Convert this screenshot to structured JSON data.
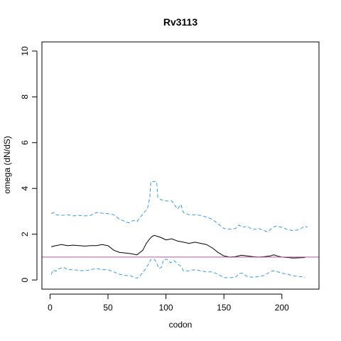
{
  "chart_data": {
    "type": "line",
    "title": "Rv3113",
    "xlabel": "codon",
    "ylabel": "omega (dN/dS)",
    "xlim": [
      -7,
      232
    ],
    "ylim": [
      -0.4,
      10.4
    ],
    "xticks": [
      0,
      50,
      100,
      150,
      200
    ],
    "yticks": [
      0,
      2,
      4,
      6,
      8,
      10
    ],
    "grid": false,
    "reference_line": {
      "y": 1,
      "color": "#c8509b"
    },
    "series": [
      {
        "style": "solid",
        "color": "#000000",
        "points": [
          [
            1,
            1.45
          ],
          [
            5,
            1.5
          ],
          [
            10,
            1.55
          ],
          [
            15,
            1.5
          ],
          [
            20,
            1.52
          ],
          [
            25,
            1.5
          ],
          [
            30,
            1.48
          ],
          [
            35,
            1.5
          ],
          [
            40,
            1.5
          ],
          [
            45,
            1.55
          ],
          [
            50,
            1.5
          ],
          [
            55,
            1.3
          ],
          [
            60,
            1.2
          ],
          [
            65,
            1.18
          ],
          [
            70,
            1.15
          ],
          [
            75,
            1.1
          ],
          [
            80,
            1.3
          ],
          [
            83,
            1.6
          ],
          [
            86,
            1.8
          ],
          [
            88,
            1.9
          ],
          [
            90,
            1.95
          ],
          [
            93,
            1.9
          ],
          [
            96,
            1.85
          ],
          [
            100,
            1.75
          ],
          [
            105,
            1.8
          ],
          [
            110,
            1.7
          ],
          [
            115,
            1.65
          ],
          [
            120,
            1.6
          ],
          [
            125,
            1.65
          ],
          [
            130,
            1.6
          ],
          [
            135,
            1.55
          ],
          [
            140,
            1.4
          ],
          [
            145,
            1.2
          ],
          [
            150,
            1.05
          ],
          [
            155,
            1.0
          ],
          [
            160,
            1.02
          ],
          [
            165,
            1.08
          ],
          [
            170,
            1.05
          ],
          [
            175,
            1.02
          ],
          [
            180,
            1.0
          ],
          [
            185,
            1.02
          ],
          [
            190,
            1.05
          ],
          [
            193,
            1.1
          ],
          [
            196,
            1.05
          ],
          [
            200,
            1.0
          ],
          [
            205,
            0.98
          ],
          [
            210,
            0.96
          ],
          [
            215,
            0.97
          ],
          [
            220,
            0.98
          ]
        ]
      },
      {
        "style": "dashed",
        "color": "#3a9de0",
        "points": [
          [
            1,
            2.9
          ],
          [
            3,
            2.95
          ],
          [
            5,
            2.85
          ],
          [
            10,
            2.82
          ],
          [
            15,
            2.85
          ],
          [
            20,
            2.8
          ],
          [
            25,
            2.82
          ],
          [
            30,
            2.8
          ],
          [
            35,
            2.82
          ],
          [
            40,
            2.95
          ],
          [
            45,
            2.92
          ],
          [
            50,
            2.9
          ],
          [
            55,
            2.85
          ],
          [
            60,
            2.65
          ],
          [
            65,
            2.55
          ],
          [
            68,
            2.5
          ],
          [
            72,
            2.6
          ],
          [
            75,
            2.55
          ],
          [
            78,
            2.75
          ],
          [
            82,
            3.0
          ],
          [
            84,
            3.1
          ],
          [
            86,
            3.6
          ],
          [
            87,
            4.3
          ],
          [
            92,
            4.3
          ],
          [
            93,
            3.6
          ],
          [
            96,
            3.5
          ],
          [
            100,
            3.45
          ],
          [
            105,
            3.45
          ],
          [
            110,
            3.1
          ],
          [
            113,
            3.3
          ],
          [
            115,
            2.95
          ],
          [
            120,
            2.85
          ],
          [
            125,
            2.85
          ],
          [
            130,
            2.82
          ],
          [
            135,
            2.75
          ],
          [
            140,
            2.65
          ],
          [
            145,
            2.45
          ],
          [
            150,
            2.25
          ],
          [
            155,
            2.22
          ],
          [
            160,
            2.25
          ],
          [
            163,
            2.4
          ],
          [
            166,
            2.3
          ],
          [
            170,
            2.35
          ],
          [
            175,
            2.2
          ],
          [
            180,
            2.25
          ],
          [
            185,
            2.15
          ],
          [
            188,
            2.1
          ],
          [
            192,
            2.3
          ],
          [
            195,
            2.35
          ],
          [
            200,
            2.3
          ],
          [
            205,
            2.2
          ],
          [
            210,
            2.15
          ],
          [
            215,
            2.2
          ],
          [
            218,
            2.3
          ],
          [
            220,
            2.35
          ],
          [
            222,
            2.3
          ]
        ]
      },
      {
        "style": "dashed",
        "color": "#3a9de0",
        "points": [
          [
            1,
            0.25
          ],
          [
            3,
            0.45
          ],
          [
            5,
            0.38
          ],
          [
            8,
            0.5
          ],
          [
            12,
            0.55
          ],
          [
            15,
            0.45
          ],
          [
            20,
            0.45
          ],
          [
            25,
            0.42
          ],
          [
            30,
            0.4
          ],
          [
            35,
            0.45
          ],
          [
            40,
            0.5
          ],
          [
            45,
            0.45
          ],
          [
            50,
            0.45
          ],
          [
            55,
            0.35
          ],
          [
            60,
            0.25
          ],
          [
            65,
            0.2
          ],
          [
            70,
            0.18
          ],
          [
            73,
            0.1
          ],
          [
            75,
            0.08
          ],
          [
            78,
            0.2
          ],
          [
            82,
            0.45
          ],
          [
            85,
            0.7
          ],
          [
            87,
            0.9
          ],
          [
            90,
            0.9
          ],
          [
            92,
            0.75
          ],
          [
            94,
            0.5
          ],
          [
            96,
            0.55
          ],
          [
            98,
            0.9
          ],
          [
            101,
            0.9
          ],
          [
            104,
            0.75
          ],
          [
            107,
            0.85
          ],
          [
            110,
            0.7
          ],
          [
            113,
            0.6
          ],
          [
            115,
            0.4
          ],
          [
            120,
            0.4
          ],
          [
            125,
            0.45
          ],
          [
            130,
            0.4
          ],
          [
            135,
            0.35
          ],
          [
            140,
            0.35
          ],
          [
            145,
            0.25
          ],
          [
            150,
            0.1
          ],
          [
            155,
            0.1
          ],
          [
            160,
            0.12
          ],
          [
            163,
            0.28
          ],
          [
            166,
            0.3
          ],
          [
            170,
            0.15
          ],
          [
            175,
            0.12
          ],
          [
            180,
            0.15
          ],
          [
            185,
            0.2
          ],
          [
            188,
            0.3
          ],
          [
            192,
            0.4
          ],
          [
            195,
            0.38
          ],
          [
            200,
            0.3
          ],
          [
            205,
            0.25
          ],
          [
            210,
            0.18
          ],
          [
            215,
            0.15
          ],
          [
            220,
            0.12
          ]
        ]
      }
    ]
  }
}
